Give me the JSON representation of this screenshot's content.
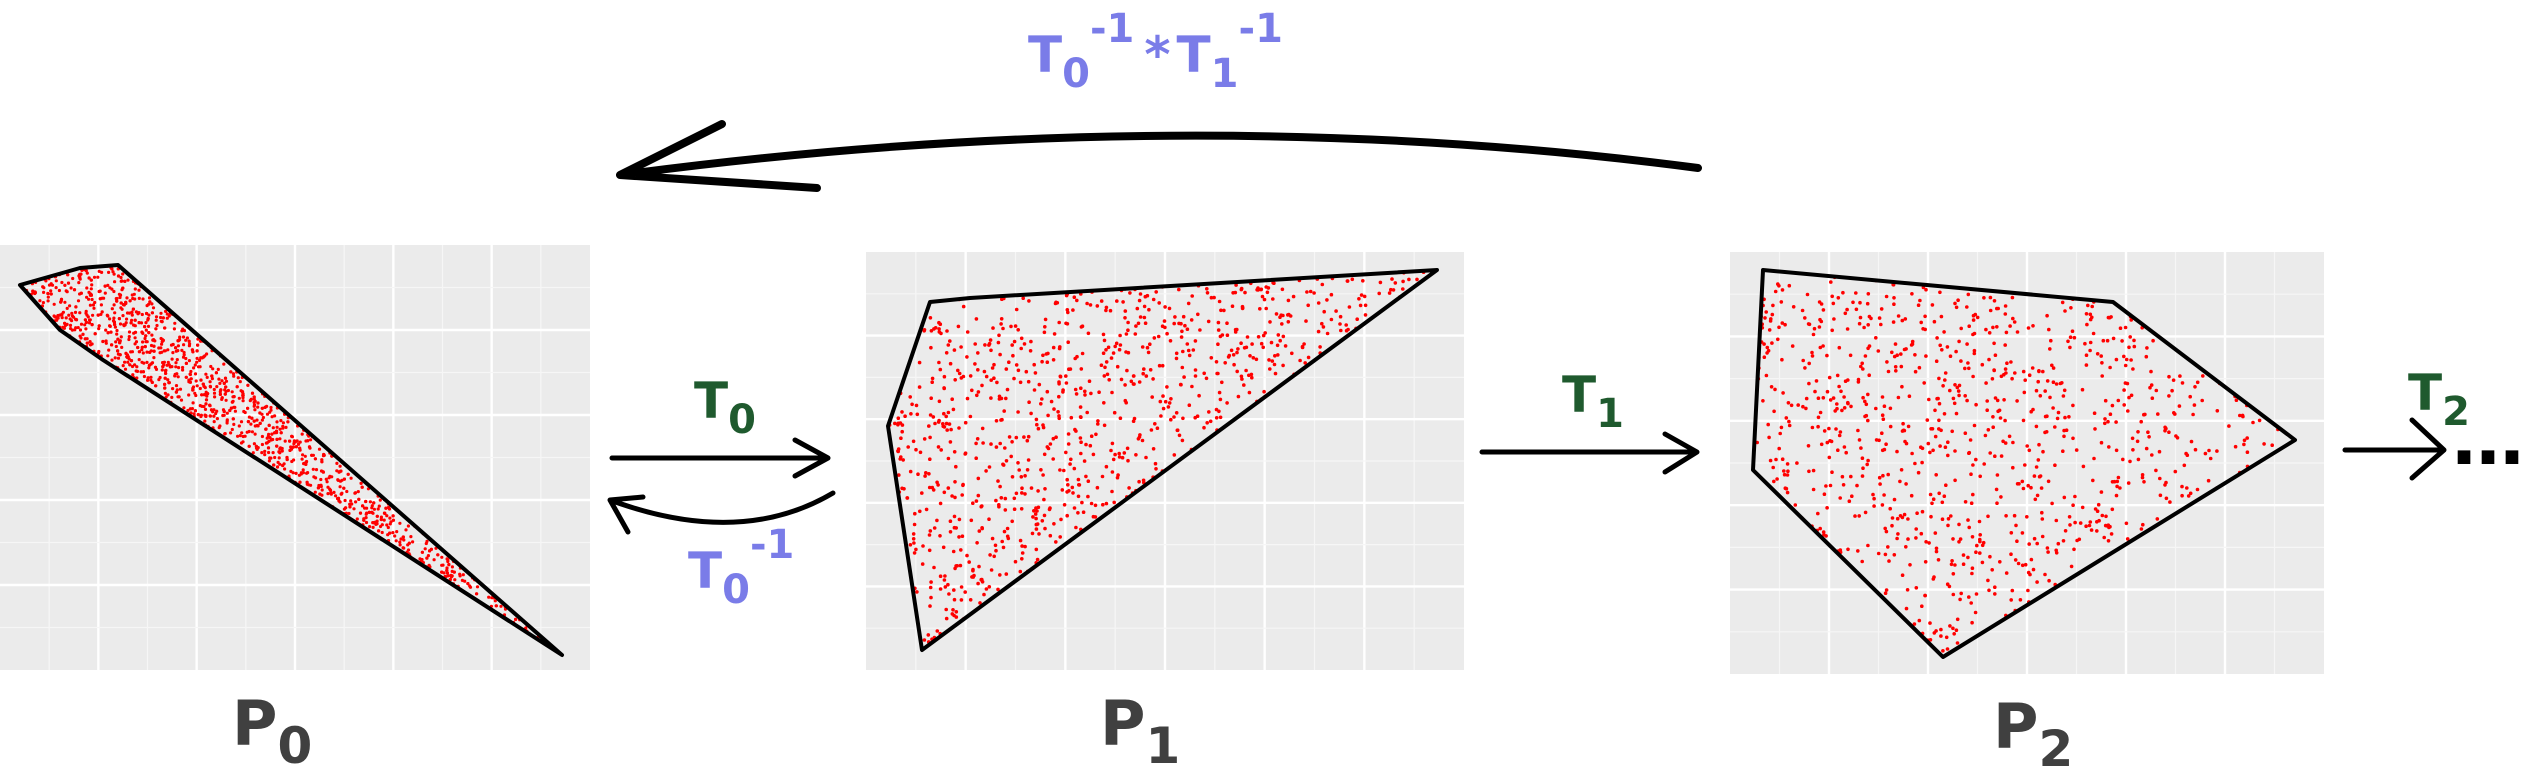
{
  "panels": [
    {
      "name": "P",
      "sub": "0"
    },
    {
      "name": "P",
      "sub": "1"
    },
    {
      "name": "P",
      "sub": "2"
    }
  ],
  "transforms": {
    "t0": {
      "name": "T",
      "sub": "0"
    },
    "t0_inv": {
      "name": "T",
      "sub": "0",
      "sup": "-1"
    },
    "t1": {
      "name": "T",
      "sub": "1"
    },
    "t2": {
      "name": "T",
      "sub": "2"
    },
    "ellipsis": "…",
    "composite": {
      "a": "T",
      "a_sub": "0",
      "a_sup": "-1",
      "op": "*",
      "b": "T",
      "b_sub": "1",
      "b_sup": "-1"
    }
  },
  "colors": {
    "panel_bg": "#ebebeb",
    "points": "#ff0000",
    "polygon": "#000000",
    "panel_label": "#404040",
    "forward_label": "#1f5a2e",
    "inverse_label": "#7a7ce8"
  }
}
